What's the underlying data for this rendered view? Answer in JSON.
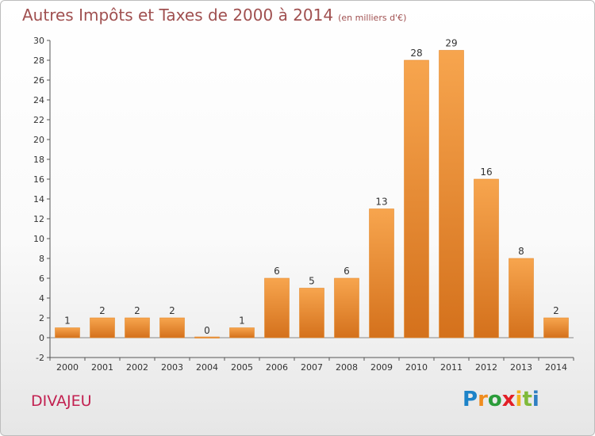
{
  "header": {
    "title": "Autres Impôts et Taxes de 2000 à 2014",
    "subtitle": "(en milliers d'€)"
  },
  "footer": {
    "place": "DIVAJEU",
    "logo": "Proxiti"
  },
  "colors": {
    "bar_light": "#f7a54e",
    "bar_dark": "#d4711c",
    "title": "#a05050",
    "place": "#c22050"
  },
  "chart_data": {
    "type": "bar",
    "title": "Autres Impôts et Taxes de 2000 à 2014",
    "subtitle": "(en milliers d'€)",
    "xlabel": "",
    "ylabel": "",
    "categories": [
      "2000",
      "2001",
      "2002",
      "2003",
      "2004",
      "2005",
      "2006",
      "2007",
      "2008",
      "2009",
      "2010",
      "2011",
      "2012",
      "2013",
      "2014"
    ],
    "values": [
      1,
      2,
      2,
      2,
      0,
      1,
      6,
      5,
      6,
      13,
      28,
      29,
      16,
      8,
      2
    ],
    "ylim": [
      -2,
      30
    ],
    "yticks": [
      -2,
      0,
      2,
      4,
      6,
      8,
      10,
      12,
      14,
      16,
      18,
      20,
      22,
      24,
      26,
      28,
      30
    ],
    "grid": false,
    "legend": "none"
  }
}
